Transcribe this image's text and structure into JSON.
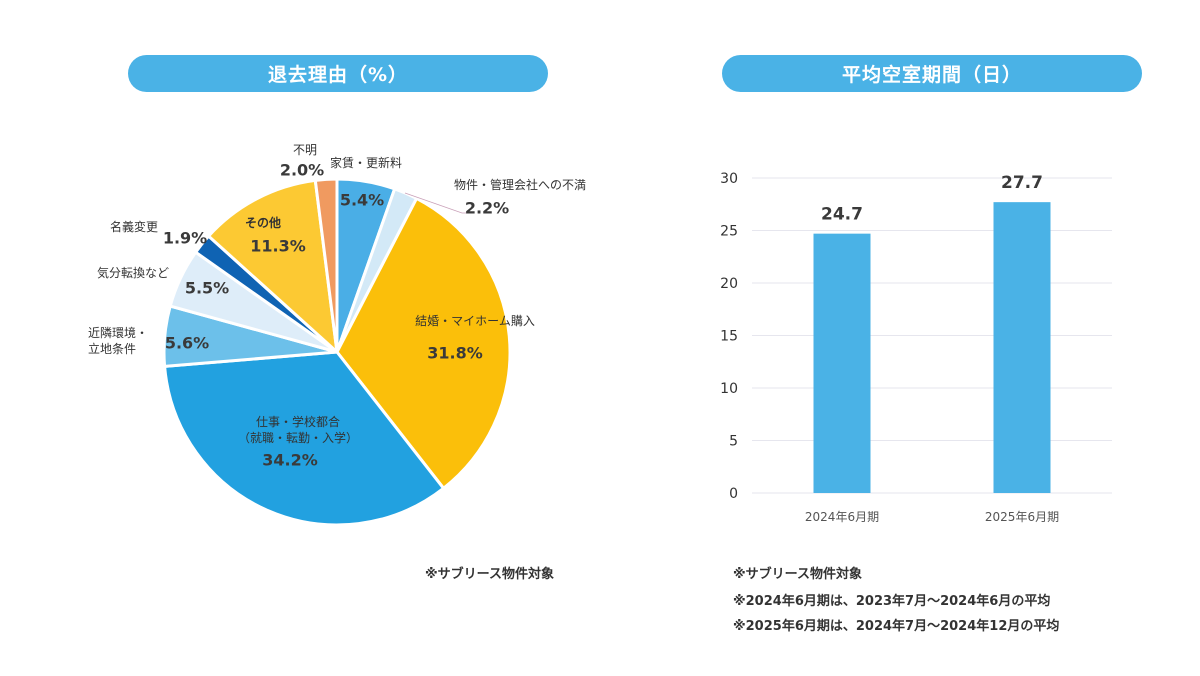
{
  "left_panel": {
    "title": "退去理由（%）",
    "note": "※サブリース物件対象"
  },
  "right_panel": {
    "title": "平均空室期間（日）",
    "notes": [
      "※サブリース物件対象",
      "※2024年6月期は、2023年7月～2024年6月の平均",
      "※2025年6月期は、2024年7月～2024年12月の平均"
    ]
  },
  "chart_data": [
    {
      "type": "pie",
      "title": "退去理由（%）",
      "start": "12 o'clock, clockwise",
      "slices": [
        {
          "label": "家賃・更新料",
          "value": 5.4,
          "display": "5.4%",
          "color": "#4aaee6"
        },
        {
          "label": "物件・管理会社への不満",
          "value": 2.2,
          "display": "2.2%",
          "color": "#d3e9f7"
        },
        {
          "label": "結婚・マイホーム購入",
          "value": 31.8,
          "display": "31.8%",
          "color": "#fbbf0a"
        },
        {
          "label": "仕事・学校都合\n（就職・転勤・入学）",
          "value": 34.2,
          "display": "34.2%",
          "color": "#22a1e0"
        },
        {
          "label": "近隣環境・\n立地条件",
          "value": 5.6,
          "display": "5.6%",
          "color": "#6cc0ea"
        },
        {
          "label": "気分転換など",
          "value": 5.5,
          "display": "5.5%",
          "color": "#deedf9"
        },
        {
          "label": "名義変更",
          "value": 1.9,
          "display": "1.9%",
          "color": "#0f63b3"
        },
        {
          "label": "その他",
          "value": 11.3,
          "display": "11.3%",
          "color": "#fcc933"
        },
        {
          "label": "不明",
          "value": 2.0,
          "display": "2.0%",
          "color": "#f09a60"
        }
      ]
    },
    {
      "type": "bar",
      "title": "平均空室期間（日）",
      "categories": [
        "2024年6月期",
        "2025年6月期"
      ],
      "values": [
        24.7,
        27.7
      ],
      "ylim": [
        0,
        30
      ],
      "yticks": [
        0,
        5,
        10,
        15,
        20,
        25,
        30
      ],
      "grid": true,
      "color": "#4ab2e6"
    }
  ]
}
